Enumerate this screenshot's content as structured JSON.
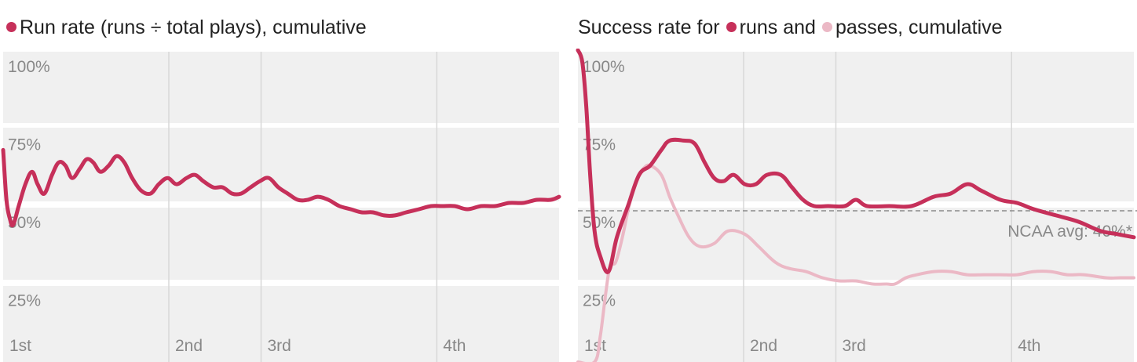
{
  "colors": {
    "run": "#c6305a",
    "pass": "#ebb8c5",
    "panel_bg": "#f0f0f0",
    "grid": "#d8d8d8",
    "text": "#888888"
  },
  "chart_data": [
    {
      "type": "line",
      "title_parts": [
        "Run rate (runs ÷ total plays), cumulative"
      ],
      "y_ticks": [
        "100%",
        "75%",
        "50%",
        "25%"
      ],
      "x_ticks": [
        "1st",
        "2nd",
        "3rd",
        "4th"
      ],
      "ylim": [
        0,
        100
      ],
      "quarter_starts": [
        0,
        0.298,
        0.464,
        0.78
      ],
      "series": [
        {
          "key": "run",
          "values": [
            [
              0.0,
              68
            ],
            [
              0.006,
              52
            ],
            [
              0.012,
              46
            ],
            [
              0.018,
              44
            ],
            [
              0.028,
              50
            ],
            [
              0.04,
              57
            ],
            [
              0.052,
              61
            ],
            [
              0.062,
              57
            ],
            [
              0.074,
              54
            ],
            [
              0.088,
              60
            ],
            [
              0.1,
              64
            ],
            [
              0.112,
              63
            ],
            [
              0.124,
              59
            ],
            [
              0.138,
              62
            ],
            [
              0.15,
              65
            ],
            [
              0.162,
              64
            ],
            [
              0.175,
              61
            ],
            [
              0.19,
              63
            ],
            [
              0.204,
              66
            ],
            [
              0.218,
              64
            ],
            [
              0.232,
              59
            ],
            [
              0.248,
              55
            ],
            [
              0.265,
              54
            ],
            [
              0.28,
              57
            ],
            [
              0.296,
              59
            ],
            [
              0.312,
              57
            ],
            [
              0.33,
              59
            ],
            [
              0.345,
              60
            ],
            [
              0.36,
              58
            ],
            [
              0.378,
              56
            ],
            [
              0.395,
              56
            ],
            [
              0.412,
              54
            ],
            [
              0.428,
              54
            ],
            [
              0.445,
              56
            ],
            [
              0.462,
              58
            ],
            [
              0.478,
              59
            ],
            [
              0.495,
              56
            ],
            [
              0.512,
              54
            ],
            [
              0.53,
              52
            ],
            [
              0.548,
              52
            ],
            [
              0.566,
              53
            ],
            [
              0.585,
              52
            ],
            [
              0.605,
              50
            ],
            [
              0.625,
              49
            ],
            [
              0.645,
              48
            ],
            [
              0.665,
              48
            ],
            [
              0.685,
              47
            ],
            [
              0.705,
              47
            ],
            [
              0.725,
              48
            ],
            [
              0.748,
              49
            ],
            [
              0.77,
              50
            ],
            [
              0.79,
              50
            ],
            [
              0.812,
              50
            ],
            [
              0.835,
              49
            ],
            [
              0.86,
              50
            ],
            [
              0.885,
              50
            ],
            [
              0.91,
              51
            ],
            [
              0.935,
              51
            ],
            [
              0.96,
              52
            ],
            [
              0.985,
              52
            ],
            [
              1.0,
              53
            ]
          ]
        }
      ]
    },
    {
      "type": "line",
      "title_parts": [
        "Success rate for",
        "runs and",
        "passes, cumulative"
      ],
      "y_ticks": [
        "100%",
        "75%",
        "50%",
        "25%"
      ],
      "x_ticks": [
        "1st",
        "2nd",
        "3rd",
        "4th"
      ],
      "ylim": [
        0,
        100
      ],
      "quarter_starts": [
        0,
        0.298,
        0.464,
        0.78
      ],
      "reference_line": {
        "value": 40,
        "label": "NCAA avg: 40%*"
      },
      "series": [
        {
          "key": "run",
          "values": [
            [
              0.0,
              100
            ],
            [
              0.008,
              96
            ],
            [
              0.015,
              82
            ],
            [
              0.022,
              60
            ],
            [
              0.03,
              42
            ],
            [
              0.04,
              34
            ],
            [
              0.055,
              29
            ],
            [
              0.07,
              40
            ],
            [
              0.09,
              50
            ],
            [
              0.11,
              60
            ],
            [
              0.13,
              63
            ],
            [
              0.15,
              68
            ],
            [
              0.165,
              71
            ],
            [
              0.19,
              71
            ],
            [
              0.21,
              70
            ],
            [
              0.228,
              64
            ],
            [
              0.245,
              59
            ],
            [
              0.262,
              58
            ],
            [
              0.28,
              60
            ],
            [
              0.3,
              57
            ],
            [
              0.32,
              57
            ],
            [
              0.34,
              60
            ],
            [
              0.365,
              60
            ],
            [
              0.385,
              56
            ],
            [
              0.405,
              52
            ],
            [
              0.425,
              50
            ],
            [
              0.45,
              50
            ],
            [
              0.48,
              50
            ],
            [
              0.5,
              52
            ],
            [
              0.52,
              50
            ],
            [
              0.56,
              50
            ],
            [
              0.6,
              50
            ],
            [
              0.64,
              53
            ],
            [
              0.67,
              54
            ],
            [
              0.7,
              57
            ],
            [
              0.725,
              55
            ],
            [
              0.76,
              52
            ],
            [
              0.79,
              51
            ],
            [
              0.82,
              49
            ],
            [
              0.86,
              47
            ],
            [
              0.9,
              45
            ],
            [
              0.94,
              42
            ],
            [
              0.97,
              41
            ],
            [
              1.0,
              40
            ]
          ]
        },
        {
          "key": "pass",
          "values": [
            [
              0.0,
              0
            ],
            [
              0.03,
              0
            ],
            [
              0.04,
              8
            ],
            [
              0.05,
              22
            ],
            [
              0.058,
              31
            ],
            [
              0.068,
              32
            ],
            [
              0.08,
              40
            ],
            [
              0.092,
              50
            ],
            [
              0.106,
              58
            ],
            [
              0.118,
              62
            ],
            [
              0.13,
              63
            ],
            [
              0.15,
              60
            ],
            [
              0.165,
              53
            ],
            [
              0.18,
              47
            ],
            [
              0.2,
              40
            ],
            [
              0.22,
              37
            ],
            [
              0.245,
              38
            ],
            [
              0.27,
              42
            ],
            [
              0.3,
              41
            ],
            [
              0.325,
              37
            ],
            [
              0.355,
              32
            ],
            [
              0.38,
              30
            ],
            [
              0.41,
              29
            ],
            [
              0.44,
              27
            ],
            [
              0.47,
              26
            ],
            [
              0.5,
              26
            ],
            [
              0.53,
              25
            ],
            [
              0.555,
              25
            ],
            [
              0.57,
              25
            ],
            [
              0.59,
              27
            ],
            [
              0.61,
              28
            ],
            [
              0.64,
              29
            ],
            [
              0.67,
              29
            ],
            [
              0.7,
              28
            ],
            [
              0.73,
              28
            ],
            [
              0.76,
              28
            ],
            [
              0.79,
              28
            ],
            [
              0.82,
              29
            ],
            [
              0.85,
              29
            ],
            [
              0.88,
              28
            ],
            [
              0.91,
              28
            ],
            [
              0.95,
              27
            ],
            [
              0.975,
              27
            ],
            [
              1.0,
              27
            ]
          ]
        }
      ]
    }
  ]
}
